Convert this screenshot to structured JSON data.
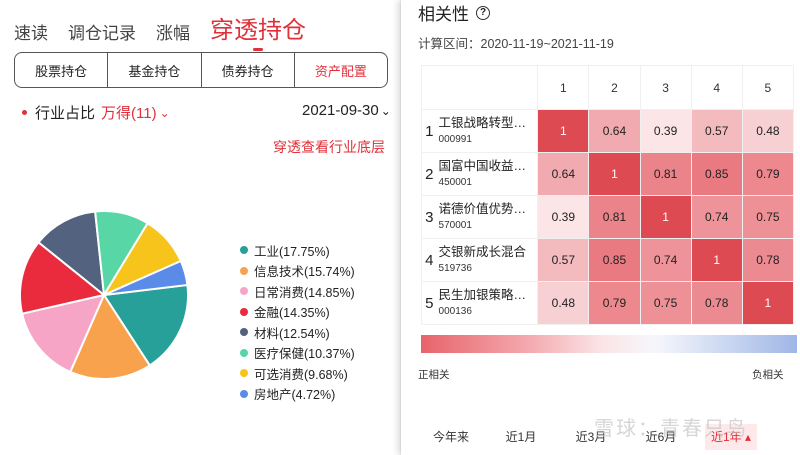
{
  "nav": {
    "tabs": [
      "速读",
      "调仓记录",
      "涨幅",
      "穿透持仓"
    ],
    "active_index": 3
  },
  "segments": [
    "股票持仓",
    "基金持仓",
    "债券持仓",
    "资产配置"
  ],
  "filter": {
    "label": "行业占比",
    "value": "万得(11)",
    "date": "2021-09-30"
  },
  "deep_link": "穿透查看行业底层",
  "chart_data": {
    "type": "pie",
    "slices": [
      {
        "name": "工业",
        "value": 17.75,
        "label": "工业(17.75%)",
        "color": "#26a098"
      },
      {
        "name": "信息技术",
        "value": 15.74,
        "label": "信息技术(15.74%)",
        "color": "#f9a24e"
      },
      {
        "name": "日常消费",
        "value": 14.85,
        "label": "日常消费(14.85%)",
        "color": "#f6a5c6"
      },
      {
        "name": "金融",
        "value": 14.35,
        "label": "金融(14.35%)",
        "color": "#ea2a3d"
      },
      {
        "name": "材料",
        "value": 12.54,
        "label": "材料(12.54%)",
        "color": "#53627f"
      },
      {
        "name": "医疗保健",
        "value": 10.37,
        "label": "医疗保健(10.37%)",
        "color": "#58d6a6"
      },
      {
        "name": "可选消费",
        "value": 9.68,
        "label": "可选消费(9.68%)",
        "color": "#f6c41b"
      },
      {
        "name": "房地产",
        "value": 4.72,
        "label": "房地产(4.72%)",
        "color": "#5a8be8"
      }
    ]
  },
  "correlation": {
    "title": "相关性",
    "period": "计算区间：2020-11-19~2021-11-19",
    "columns": [
      "1",
      "2",
      "3",
      "4",
      "5"
    ],
    "funds": [
      {
        "idx": "1",
        "name": "工银战略转型…",
        "code": "000991"
      },
      {
        "idx": "2",
        "name": "国富中国收益…",
        "code": "450001"
      },
      {
        "idx": "3",
        "name": "诺德价值优势…",
        "code": "570001"
      },
      {
        "idx": "4",
        "name": "交银新成长混合",
        "code": "519736"
      },
      {
        "idx": "5",
        "name": "民生加银策略…",
        "code": "000136"
      }
    ],
    "matrix": [
      [
        "1",
        "0.64",
        "0.39",
        "0.57",
        "0.48"
      ],
      [
        "0.64",
        "1",
        "0.81",
        "0.85",
        "0.79"
      ],
      [
        "0.39",
        "0.81",
        "1",
        "0.74",
        "0.75"
      ],
      [
        "0.57",
        "0.85",
        "0.74",
        "1",
        "0.78"
      ],
      [
        "0.48",
        "0.79",
        "0.75",
        "0.78",
        "1"
      ]
    ],
    "legend_left": "正相关",
    "legend_right": "负相关",
    "ranges": [
      "今年来",
      "近1月",
      "近3月",
      "近6月",
      "近1年"
    ],
    "selected_range": "近1年"
  },
  "watermark": "雪球：青春只鸟"
}
